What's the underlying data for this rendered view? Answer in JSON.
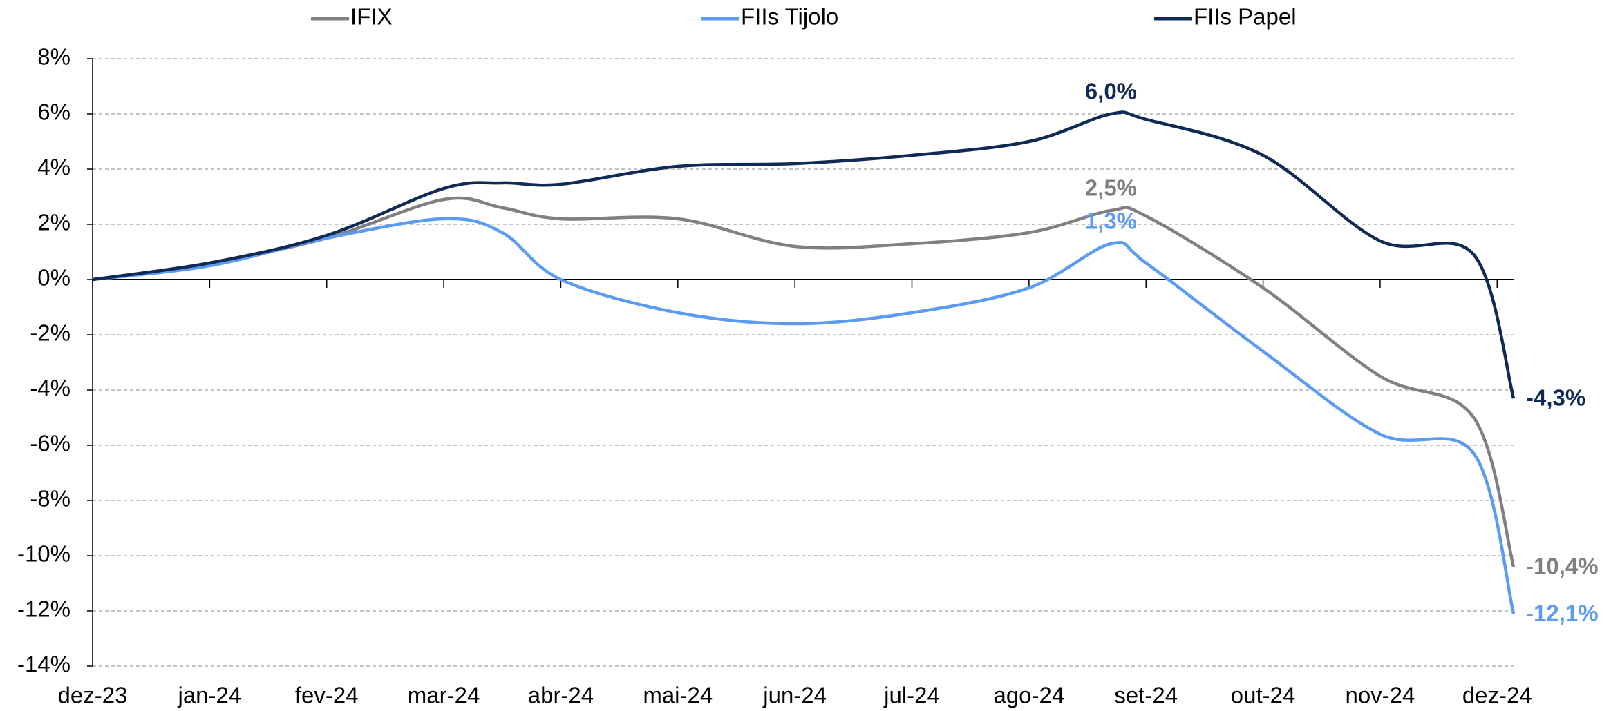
{
  "chart_data": {
    "type": "line",
    "x": [
      0,
      1,
      2,
      3,
      3.5,
      4,
      5,
      6,
      7,
      8,
      8.7,
      9,
      10,
      11,
      11.8,
      12.14
    ],
    "xlim": [
      0,
      12.14
    ],
    "xticks": [
      {
        "value": 0,
        "label": "dez-23"
      },
      {
        "value": 1,
        "label": "jan-24"
      },
      {
        "value": 2,
        "label": "fev-24"
      },
      {
        "value": 3,
        "label": "mar-24"
      },
      {
        "value": 4,
        "label": "abr-24"
      },
      {
        "value": 5,
        "label": "mai-24"
      },
      {
        "value": 6,
        "label": "jun-24"
      },
      {
        "value": 7,
        "label": "jul-24"
      },
      {
        "value": 8,
        "label": "ago-24"
      },
      {
        "value": 9,
        "label": "set-24"
      },
      {
        "value": 10,
        "label": "out-24"
      },
      {
        "value": 11,
        "label": "nov-24"
      },
      {
        "value": 12,
        "label": "dez-24"
      }
    ],
    "ylim": [
      -14,
      8
    ],
    "yticks": [
      {
        "value": 8,
        "label": "8%"
      },
      {
        "value": 6,
        "label": "6%"
      },
      {
        "value": 4,
        "label": "4%"
      },
      {
        "value": 2,
        "label": "2%"
      },
      {
        "value": 0,
        "label": "0%"
      },
      {
        "value": -2,
        "label": "-2%"
      },
      {
        "value": -4,
        "label": "-4%"
      },
      {
        "value": -6,
        "label": "-6%"
      },
      {
        "value": -8,
        "label": "-8%"
      },
      {
        "value": -10,
        "label": "-10%"
      },
      {
        "value": -12,
        "label": "-12%"
      },
      {
        "value": -14,
        "label": "-14%"
      }
    ],
    "grid": true,
    "legend": "top",
    "series": [
      {
        "name": "IFIX",
        "color": "#808080",
        "values": [
          0,
          0.6,
          1.5,
          2.9,
          2.6,
          2.2,
          2.2,
          1.2,
          1.3,
          1.7,
          2.5,
          2.3,
          -0.3,
          -3.5,
          -5.0,
          -10.4
        ],
        "value_labels": [
          null,
          null,
          null,
          null,
          null,
          null,
          null,
          null,
          null,
          null,
          "2,5%",
          null,
          null,
          null,
          null,
          "-10,4%"
        ]
      },
      {
        "name": "FIIs Tijolo",
        "color": "#5b9bf0",
        "values": [
          0,
          0.5,
          1.5,
          2.2,
          1.7,
          0.0,
          -1.2,
          -1.6,
          -1.2,
          -0.3,
          1.3,
          0.6,
          -2.6,
          -5.6,
          -6.3,
          -12.1
        ],
        "value_labels": [
          null,
          null,
          null,
          null,
          null,
          null,
          null,
          null,
          null,
          null,
          "1,3%",
          null,
          null,
          null,
          null,
          "-12,1%"
        ]
      },
      {
        "name": "FIIs Papel",
        "color": "#0f2a55",
        "values": [
          0,
          0.6,
          1.6,
          3.3,
          3.5,
          3.45,
          4.1,
          4.2,
          4.5,
          5.0,
          6.0,
          5.8,
          4.5,
          1.4,
          0.9,
          -4.3
        ],
        "value_labels": [
          null,
          null,
          null,
          null,
          null,
          null,
          null,
          null,
          null,
          null,
          "6,0%",
          null,
          null,
          null,
          null,
          "-4,3%"
        ]
      }
    ]
  }
}
